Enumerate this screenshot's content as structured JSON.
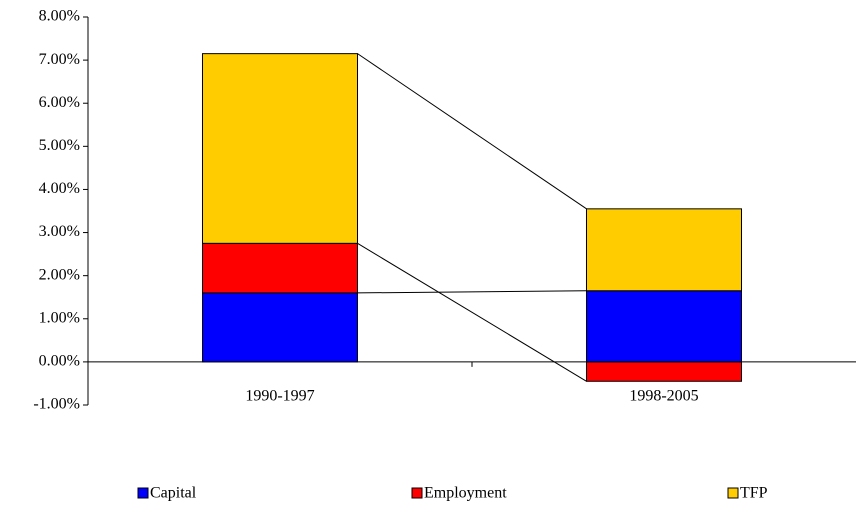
{
  "chart_data": {
    "type": "stacked_bar",
    "categories": [
      "1990-1997",
      "1998-2005"
    ],
    "series": [
      {
        "name": "Capital",
        "color": "#0000ff",
        "values": [
          1.6,
          1.65
        ]
      },
      {
        "name": "Employment",
        "color": "#ff0000",
        "values": [
          1.15,
          -0.45
        ]
      },
      {
        "name": "TFP",
        "color": "#ffcc00",
        "values": [
          4.4,
          1.9
        ]
      }
    ],
    "ylim": [
      -1,
      8
    ],
    "yticks": [
      {
        "value": -1,
        "label": "-1.00%"
      },
      {
        "value": 0,
        "label": "0.00%"
      },
      {
        "value": 1,
        "label": "1.00%"
      },
      {
        "value": 2,
        "label": "2.00%"
      },
      {
        "value": 3,
        "label": "3.00%"
      },
      {
        "value": 4,
        "label": "4.00%"
      },
      {
        "value": 5,
        "label": "5.00%"
      },
      {
        "value": 6,
        "label": "6.00%"
      },
      {
        "value": 7,
        "label": "7.00%"
      },
      {
        "value": 8,
        "label": "8.00%"
      }
    ],
    "legend": "bottom"
  }
}
